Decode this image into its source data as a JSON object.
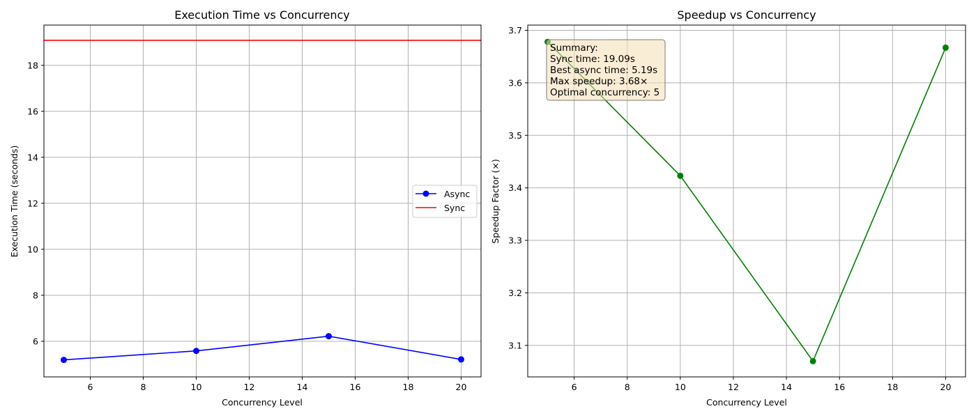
{
  "chart_data": [
    {
      "type": "line",
      "title": "Execution Time vs Concurrency",
      "xlabel": "Concurrency Level",
      "ylabel": "Execution Time (seconds)",
      "xlim": [
        4.25,
        20.75
      ],
      "ylim": [
        4.45,
        19.75
      ],
      "xticks": [
        6,
        8,
        10,
        12,
        14,
        16,
        18,
        20
      ],
      "yticks": [
        6,
        8,
        10,
        12,
        14,
        16,
        18
      ],
      "grid": true,
      "legend_position": "center-right",
      "series": [
        {
          "name": "Async",
          "x": [
            5,
            10,
            15,
            20
          ],
          "y": [
            5.19,
            5.58,
            6.22,
            5.21
          ],
          "color": "#0000ff",
          "marker": "circle"
        },
        {
          "name": "Sync",
          "kind": "horizontal-line",
          "y": 19.09,
          "color": "#ff0000"
        }
      ]
    },
    {
      "type": "line",
      "title": "Speedup vs Concurrency",
      "xlabel": "Concurrency Level",
      "ylabel": "Speedup Factor (×)",
      "xlim": [
        4.25,
        20.75
      ],
      "ylim": [
        3.04,
        3.71
      ],
      "xticks": [
        6,
        8,
        10,
        12,
        14,
        16,
        18,
        20
      ],
      "yticks": [
        3.1,
        3.2,
        3.3,
        3.4,
        3.5,
        3.6,
        3.7
      ],
      "grid": true,
      "series": [
        {
          "x": [
            5,
            10,
            15,
            20
          ],
          "y": [
            3.678,
            3.423,
            3.07,
            3.667
          ],
          "color": "#008000",
          "marker": "circle"
        }
      ],
      "annotation": {
        "position": "top-left",
        "background": "#f5deb3",
        "lines": [
          "Summary:",
          "Sync time: 19.09s",
          "Best async time: 5.19s",
          "Max speedup: 3.68×",
          "Optimal concurrency: 5"
        ]
      }
    }
  ]
}
